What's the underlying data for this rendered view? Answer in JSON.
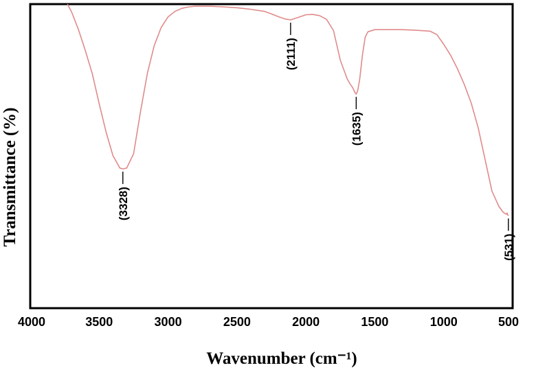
{
  "chart_data": {
    "type": "line",
    "title": "",
    "xlabel": "Wavenumber (cm⁻¹)",
    "ylabel": "Transmittance (%)",
    "xlim": [
      4000,
      500
    ],
    "x_reversed": true,
    "x_ticks": [
      4000,
      3500,
      3000,
      2500,
      2000,
      1500,
      1000,
      500
    ],
    "y_tick_labels": false,
    "grid": false,
    "line_color": "#e08a8a",
    "series": [
      {
        "x": [
          3730,
          3700,
          3650,
          3600,
          3550,
          3500,
          3450,
          3400,
          3350,
          3328,
          3300,
          3250,
          3200,
          3150,
          3100,
          3050,
          3000,
          2950,
          2900,
          2850,
          2800,
          2700,
          2600,
          2500,
          2400,
          2300,
          2250,
          2200,
          2150,
          2111,
          2050,
          2000,
          1950,
          1900,
          1850,
          1800,
          1750,
          1700,
          1680,
          1660,
          1645,
          1635,
          1625,
          1610,
          1590,
          1570,
          1550,
          1500,
          1400,
          1300,
          1200,
          1100,
          1050,
          1000,
          950,
          900,
          850,
          800,
          750,
          700,
          650,
          600,
          570,
          555,
          545,
          540,
          535,
          531
        ],
        "y": [
          100,
          97.4,
          91.6,
          84.7,
          77.1,
          67.3,
          58.0,
          50.2,
          46.1,
          45.8,
          46.1,
          50.8,
          64.7,
          77.3,
          86.4,
          92.3,
          95.8,
          97.6,
          98.6,
          99.1,
          99.3,
          99.3,
          99.1,
          98.8,
          98.3,
          97.6,
          96.8,
          95.9,
          95.1,
          94.8,
          95.7,
          96.5,
          96.6,
          96.2,
          95.0,
          91.3,
          81.5,
          75.4,
          73.8,
          72.5,
          71.0,
          70.4,
          71.4,
          75.2,
          83.2,
          89.1,
          90.9,
          91.6,
          91.6,
          91.6,
          91.4,
          91.1,
          90.0,
          86.8,
          83.2,
          78.7,
          73.5,
          67.4,
          59.3,
          48.9,
          38.5,
          33.5,
          31.6,
          31.1,
          30.9,
          31.3,
          30.6,
          30.4
        ]
      }
    ],
    "annotations": [
      {
        "x": 3328,
        "y": 45.8,
        "label": "(3328)",
        "position": "below"
      },
      {
        "x": 2111,
        "y": 94.8,
        "label": "(2111)",
        "position": "below"
      },
      {
        "x": 1635,
        "y": 70.4,
        "label": "(1635)",
        "position": "below"
      },
      {
        "x": 531,
        "y": 30.4,
        "label": "(531)",
        "position": "below"
      }
    ]
  }
}
